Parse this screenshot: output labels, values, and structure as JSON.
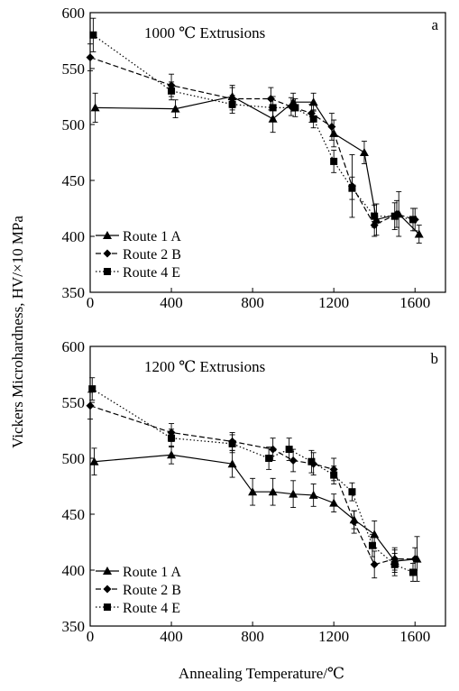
{
  "figure": {
    "ylabel": "Vickers Microhardness, HV/×10 MPa",
    "xlabel": "Annealing Temperature/℃"
  },
  "chart_data": [
    {
      "type": "line",
      "panel_letter": "a",
      "title": "1000 ℃ Extrusions",
      "xlim": [
        0,
        1750
      ],
      "ylim": [
        350,
        600
      ],
      "xticks": [
        "0",
        "400",
        "800",
        "1200",
        "1600"
      ],
      "xtick_values": [
        0,
        400,
        800,
        1200,
        1600
      ],
      "yticks": [
        "350",
        "400",
        "450",
        "500",
        "550",
        "600"
      ],
      "ytick_values": [
        350,
        400,
        450,
        500,
        550,
        600
      ],
      "grid": false,
      "legend_position": "bottom-left",
      "series": [
        {
          "name": "Route 1 A",
          "marker": "triangle",
          "dash": "solid",
          "x": [
            25,
            420,
            700,
            900,
            1000,
            1100,
            1200,
            1350,
            1410,
            1520,
            1620
          ],
          "y": [
            515,
            514,
            525,
            505,
            520,
            520,
            492,
            475,
            415,
            420,
            402
          ],
          "err": [
            13,
            8,
            10,
            12,
            8,
            8,
            12,
            10,
            14,
            20,
            8
          ]
        },
        {
          "name": "Route 2 B",
          "marker": "diamond",
          "dash": "dashed",
          "x": [
            0,
            400,
            700,
            890,
            990,
            1090,
            1190,
            1290,
            1400,
            1510,
            1600
          ],
          "y": [
            560,
            535,
            523,
            523,
            516,
            510,
            498,
            445,
            410,
            420,
            415
          ],
          "err": [
            12,
            10,
            10,
            10,
            8,
            8,
            12,
            28,
            10,
            12,
            10
          ]
        },
        {
          "name": "Route 4 E",
          "marker": "square",
          "dash": "dotted",
          "x": [
            15,
            400,
            700,
            900,
            1010,
            1100,
            1200,
            1290,
            1400,
            1500,
            1590
          ],
          "y": [
            580,
            530,
            518,
            515,
            515,
            505,
            467,
            443,
            418,
            418,
            415
          ],
          "err": [
            15,
            8,
            8,
            10,
            8,
            8,
            10,
            10,
            10,
            12,
            10
          ]
        }
      ]
    },
    {
      "type": "line",
      "panel_letter": "b",
      "title": "1200 ℃ Extrusions",
      "xlim": [
        0,
        1750
      ],
      "ylim": [
        350,
        600
      ],
      "xticks": [
        "0",
        "400",
        "800",
        "1200",
        "1600"
      ],
      "xtick_values": [
        0,
        400,
        800,
        1200,
        1600
      ],
      "yticks": [
        "350",
        "400",
        "450",
        "500",
        "550",
        "600"
      ],
      "ytick_values": [
        350,
        400,
        450,
        500,
        550,
        600
      ],
      "grid": false,
      "legend_position": "bottom-left",
      "series": [
        {
          "name": "Route 1 A",
          "marker": "triangle",
          "dash": "solid",
          "x": [
            20,
            400,
            700,
            800,
            900,
            1000,
            1100,
            1200,
            1300,
            1400,
            1500,
            1610
          ],
          "y": [
            497,
            503,
            495,
            470,
            470,
            468,
            467,
            460,
            445,
            432,
            408,
            410
          ],
          "err": [
            12,
            8,
            12,
            12,
            12,
            12,
            10,
            8,
            8,
            12,
            10,
            20
          ]
        },
        {
          "name": "Route 2 B",
          "marker": "diamond",
          "dash": "dashed",
          "x": [
            0,
            400,
            700,
            900,
            1000,
            1100,
            1200,
            1300,
            1400,
            1500,
            1600
          ],
          "y": [
            547,
            523,
            515,
            508,
            498,
            495,
            490,
            443,
            405,
            410,
            410
          ],
          "err": [
            12,
            8,
            8,
            10,
            10,
            10,
            10,
            10,
            12,
            10,
            10
          ]
        },
        {
          "name": "Route 4 E",
          "marker": "square",
          "dash": "dotted",
          "x": [
            10,
            400,
            700,
            880,
            980,
            1090,
            1200,
            1290,
            1390,
            1500,
            1590
          ],
          "y": [
            562,
            518,
            513,
            500,
            508,
            497,
            485,
            470,
            422,
            405,
            398
          ],
          "err": [
            10,
            8,
            8,
            10,
            10,
            10,
            8,
            8,
            10,
            10,
            8
          ]
        }
      ]
    }
  ]
}
